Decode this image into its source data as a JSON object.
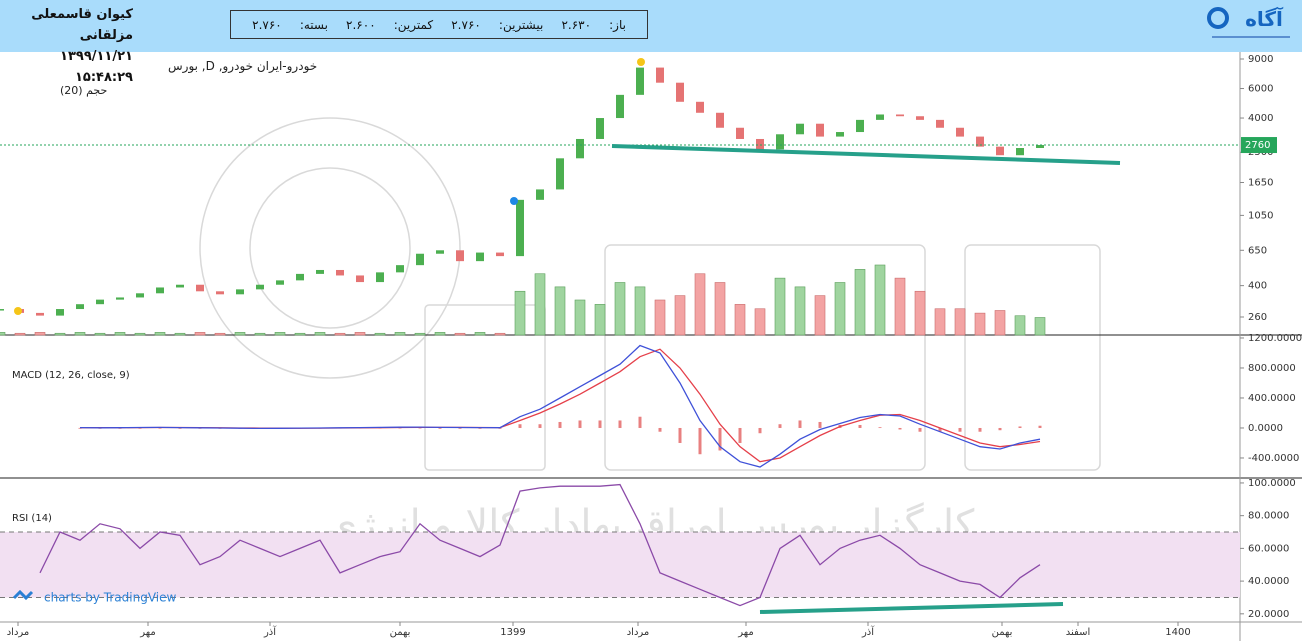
{
  "header": {
    "name": "کیوان قاسمعلی مزلقانی",
    "datetime": "۱۳۹۹/۱۱/۲۱ ۱۵:۴۸:۲۹",
    "open_label": "باز:",
    "open": "۲.۶۳۰",
    "high_label": "بیشترین:",
    "high": "۲.۷۶۰",
    "low_label": "کمترین:",
    "low": "۲.۶۰۰",
    "close_label": "بسته:",
    "close": "۲.۷۶۰",
    "logo": "آگاه"
  },
  "watermark": {
    "broker": "کارگزار بورس اوراق بهادار کالا و انرژی",
    "credit": "charts by TradingView"
  },
  "chart_data": [
    {
      "type": "candlestick",
      "title": "خودرو-ایران خودرو, D, بورس",
      "volume_title": "حجم (20)",
      "log": true,
      "ylim": [
        203,
        9910
      ],
      "yticks": [
        260,
        400,
        650,
        1050,
        1650,
        2500,
        4000,
        6000,
        9000
      ],
      "up_color": "#4caf50",
      "down_color": "#e57373",
      "volume_up_color": "#9fd49f",
      "volume_down_color": "#f3a3a3",
      "last_color": "#26a65b",
      "close": [
        290,
        275,
        265,
        290,
        310,
        330,
        340,
        360,
        390,
        405,
        370,
        355,
        380,
        405,
        430,
        470,
        496,
        460,
        420,
        480,
        530,
        620,
        650,
        560,
        630,
        600,
        1300,
        1500,
        2300,
        3000,
        4000,
        5500,
        8000,
        6500,
        5000,
        4300,
        3500,
        3000,
        2600,
        3200,
        3700,
        3100,
        3300,
        3900,
        4200,
        4100,
        3900,
        3500,
        3100,
        2700,
        2400,
        2650,
        2760
      ],
      "volume": [
        3,
        2,
        3,
        2,
        3,
        2,
        3,
        2,
        3,
        2,
        3,
        2,
        3,
        2,
        3,
        2,
        3,
        2,
        3,
        2,
        3,
        2,
        3,
        2,
        3,
        2,
        50,
        70,
        55,
        40,
        35,
        60,
        55,
        40,
        45,
        70,
        60,
        35,
        30,
        65,
        55,
        45,
        60,
        75,
        80,
        65,
        50,
        30,
        30,
        25,
        28,
        22,
        20
      ]
    },
    {
      "type": "macd",
      "title": "MACD (12, 26, close, 9)",
      "ylim": [
        -667,
        1213
      ],
      "yticks": [
        {
          "value": 1200,
          "label": "1200.0000"
        },
        {
          "value": 800,
          "label": "800.0000"
        },
        {
          "value": 400,
          "label": "400.0000"
        },
        {
          "value": 0,
          "label": "0.0000"
        },
        {
          "value": -400,
          "label": "-400.0000"
        }
      ],
      "macd": {
        "color": "#3f51d8",
        "values": [
          null,
          null,
          null,
          null,
          5,
          3,
          4,
          6,
          8,
          5,
          2,
          0,
          -3,
          -5,
          -4,
          -2,
          0,
          3,
          5,
          8,
          10,
          12,
          8,
          6,
          5,
          4,
          150,
          250,
          400,
          550,
          700,
          850,
          1100,
          1000,
          600,
          100,
          -250,
          -450,
          -520,
          -350,
          -150,
          -20,
          60,
          140,
          180,
          160,
          50,
          -50,
          -150,
          -250,
          -280,
          -200,
          -150
        ]
      },
      "signal": {
        "color": "#e5404a",
        "values": [
          null,
          null,
          null,
          null,
          4,
          4,
          4,
          5,
          6,
          6,
          4,
          2,
          0,
          -2,
          -3,
          -3,
          -2,
          0,
          2,
          4,
          6,
          8,
          8,
          7,
          6,
          5,
          100,
          200,
          320,
          450,
          600,
          750,
          950,
          1050,
          800,
          450,
          50,
          -250,
          -450,
          -400,
          -250,
          -100,
          20,
          100,
          170,
          180,
          100,
          0,
          -100,
          -200,
          -250,
          -220,
          -180
        ]
      },
      "histogram": {
        "color": "#e88080",
        "values": [
          null,
          null,
          null,
          null,
          1,
          -1,
          0,
          1,
          2,
          -1,
          -2,
          -2,
          -3,
          -3,
          -1,
          1,
          2,
          3,
          3,
          4,
          4,
          4,
          0,
          -1,
          -1,
          -1,
          50,
          50,
          80,
          100,
          100,
          100,
          150,
          -50,
          -200,
          -350,
          -300,
          -200,
          -70,
          50,
          100,
          80,
          40,
          40,
          10,
          -20,
          -50,
          -50,
          -50,
          -50,
          -30,
          20,
          30
        ]
      }
    },
    {
      "type": "line",
      "title": "RSI (14)",
      "ylim": [
        15,
        101.8
      ],
      "color": "#8b4aa8",
      "band": [
        30,
        70
      ],
      "band_color": "#f2e0f2",
      "yticks": [
        {
          "value": 100,
          "label": "100.0000"
        },
        {
          "value": 80,
          "label": "80.0000"
        },
        {
          "value": 60,
          "label": "60.0000"
        },
        {
          "value": 40,
          "label": "40.0000"
        },
        {
          "value": 20,
          "label": "20.0000"
        }
      ],
      "values": [
        null,
        null,
        45,
        70,
        65,
        75,
        72,
        60,
        70,
        68,
        50,
        55,
        65,
        60,
        55,
        60,
        65,
        45,
        50,
        55,
        58,
        75,
        65,
        60,
        55,
        62,
        95,
        97,
        98,
        98,
        98,
        99,
        75,
        45,
        40,
        35,
        30,
        25,
        30,
        60,
        68,
        50,
        60,
        65,
        68,
        60,
        50,
        45,
        40,
        38,
        30,
        42,
        50
      ],
      "xlim": [
        0,
        62
      ],
      "xticks": [
        {
          "value": 0.9,
          "label": "مرداد"
        },
        {
          "value": 7.4,
          "label": "مهر"
        },
        {
          "value": 13.5,
          "label": "آذر"
        },
        {
          "value": 20,
          "label": "بهمن"
        },
        {
          "value": 25.65,
          "label": "1399"
        },
        {
          "value": 31.9,
          "label": "مرداد"
        },
        {
          "value": 37.3,
          "label": "مهر"
        },
        {
          "value": 43.4,
          "label": "آذر"
        },
        {
          "value": 50.1,
          "label": "بهمن"
        },
        {
          "value": 53.9,
          "label": "اسفند"
        },
        {
          "value": 58.9,
          "label": "1400"
        }
      ]
    }
  ]
}
